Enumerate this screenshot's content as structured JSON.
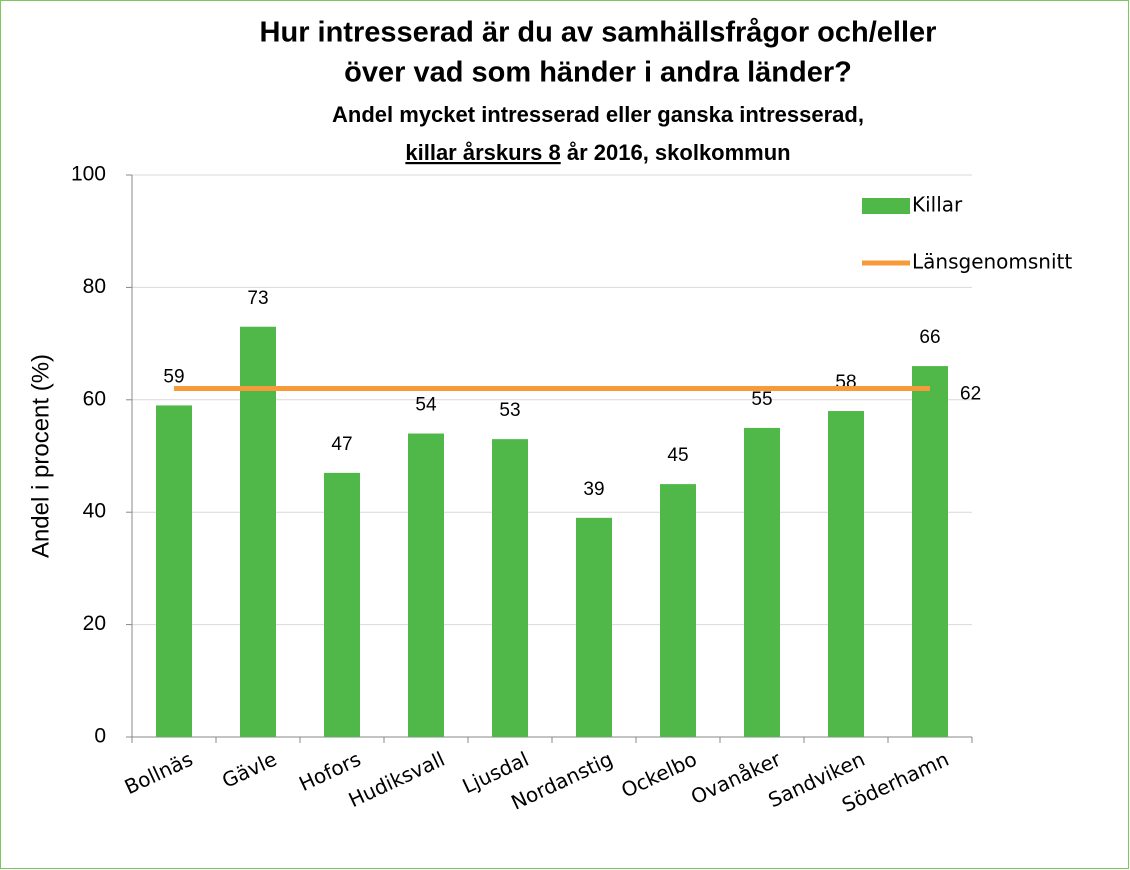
{
  "chart_data": {
    "type": "bar",
    "title": [
      "Hur intresserad är du av samhällsfrågor och/eller",
      "över vad som händer i andra länder?"
    ],
    "subtitle": "Andel mycket intresserad eller ganska intresserad,",
    "subtitle_underlined": "killar årskurs 8",
    "subtitle_rest": "år 2016, skolkommun",
    "y_label": "Andel i procent (%)",
    "categories": [
      "Bollnäs",
      "Gävle",
      "Hofors",
      "Hudiksvall",
      "Ljusdal",
      "Nordanstig",
      "Ockelbo",
      "Ovanåker",
      "Sandviken",
      "Söderhamn"
    ],
    "series": [
      {
        "name": "Killar",
        "type": "bar",
        "color": "#50b848",
        "values": [
          59,
          73,
          47,
          54,
          53,
          39,
          45,
          55,
          58,
          66
        ]
      },
      {
        "name": "Länsgenomsnitt",
        "type": "line",
        "color": "#f79a38",
        "values": [
          62,
          62,
          62,
          62,
          62,
          62,
          62,
          62,
          62,
          62
        ]
      }
    ],
    "ylim": [
      0,
      100
    ],
    "yticks": [
      0,
      20,
      40,
      60,
      80,
      100
    ],
    "grid": true,
    "legend": "top-right"
  }
}
